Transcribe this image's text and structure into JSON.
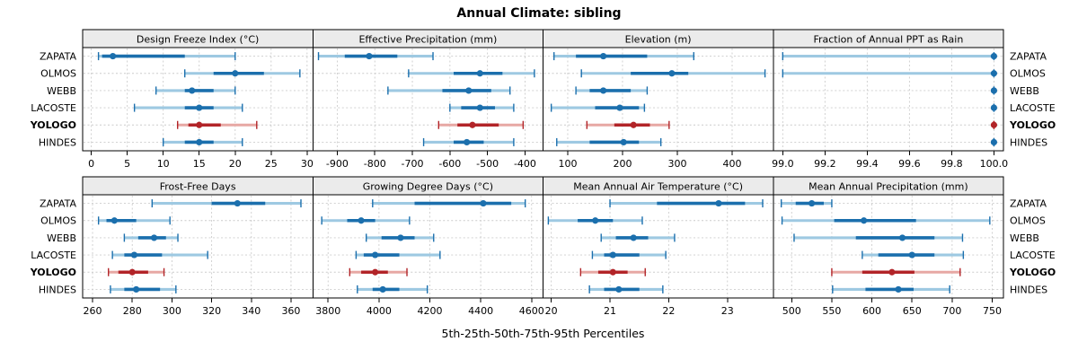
{
  "title": "Annual Climate: sibling",
  "caption": "5th-25th-50th-75th-95th Percentiles",
  "colors": {
    "series_dark": "#1b6fad",
    "series_light": "#9ec9e2",
    "highlight_dark": "#b22428",
    "highlight_light": "#e7a8a4",
    "strip_bg": "#ebebeb",
    "grid": "#cccccc",
    "border": "#000000",
    "text": "#000000"
  },
  "sites": [
    {
      "label": "ZAPATA",
      "highlight": false
    },
    {
      "label": "OLMOS",
      "highlight": false
    },
    {
      "label": "WEBB",
      "highlight": false
    },
    {
      "label": "LACOSTE",
      "highlight": false
    },
    {
      "label": "YOLOGO",
      "highlight": true
    },
    {
      "label": "HINDES",
      "highlight": false
    }
  ],
  "chart_data": {
    "type": "dotplot-percentiles",
    "percentile_levels": [
      5,
      25,
      50,
      75,
      95
    ],
    "grid": "2 rows x 4 cols, shared site axis, dashed gridlines on",
    "panels": [
      {
        "row": 0,
        "col": 0,
        "title": "Design Freeze Index (°C)",
        "xlim": [
          -1.2,
          30.8
        ],
        "ticks": [
          0,
          5,
          10,
          15,
          20,
          25,
          30
        ],
        "tick_labels": [
          "0",
          "5",
          "10",
          "15",
          "20",
          "25",
          "30"
        ],
        "values": [
          [
            1,
            1.5,
            3,
            13,
            20
          ],
          [
            13,
            17,
            20,
            24,
            29
          ],
          [
            9,
            13,
            14,
            17,
            20
          ],
          [
            6,
            13,
            15,
            17,
            21
          ],
          [
            12,
            13.5,
            15,
            18,
            23
          ],
          [
            10,
            13,
            15,
            17,
            21
          ]
        ]
      },
      {
        "row": 0,
        "col": 1,
        "title": "Effective Precipitation (mm)",
        "xlim": [
          -965,
          -352
        ],
        "ticks": [
          -900,
          -800,
          -700,
          -600,
          -500,
          -400
        ],
        "tick_labels": [
          "-900",
          "-800",
          "-700",
          "-600",
          "-500",
          "-400"
        ],
        "values": [
          [
            -950,
            -880,
            -815,
            -740,
            -645
          ],
          [
            -710,
            -590,
            -520,
            -460,
            -375
          ],
          [
            -765,
            -620,
            -550,
            -490,
            -440
          ],
          [
            -600,
            -570,
            -520,
            -480,
            -430
          ],
          [
            -630,
            -580,
            -540,
            -470,
            -405
          ],
          [
            -670,
            -590,
            -555,
            -510,
            -430
          ]
        ]
      },
      {
        "row": 0,
        "col": 2,
        "title": "Elevation (m)",
        "xlim": [
          55,
          475
        ],
        "ticks": [
          100,
          200,
          300,
          400
        ],
        "tick_labels": [
          "100",
          "200",
          "300",
          "400"
        ],
        "values": [
          [
            75,
            115,
            165,
            245,
            330
          ],
          [
            125,
            215,
            290,
            320,
            460
          ],
          [
            115,
            140,
            165,
            215,
            245
          ],
          [
            70,
            150,
            195,
            230,
            240
          ],
          [
            135,
            185,
            220,
            250,
            285
          ],
          [
            80,
            140,
            202,
            230,
            270
          ]
        ]
      },
      {
        "row": 0,
        "col": 3,
        "title": "Fraction of Annual PPT as Rain",
        "xlim": [
          98.955,
          100.045
        ],
        "ticks": [
          99.0,
          99.2,
          99.4,
          99.6,
          99.8,
          100.0
        ],
        "tick_labels": [
          "99.0",
          "99.2",
          "99.4",
          "99.6",
          "99.8",
          "100.0"
        ],
        "values": [
          [
            99,
            100,
            100,
            100,
            100
          ],
          [
            99,
            100,
            100,
            100,
            100
          ],
          [
            100,
            100,
            100,
            100,
            100
          ],
          [
            100,
            100,
            100,
            100,
            100
          ],
          [
            100,
            100,
            100,
            100,
            100
          ],
          [
            100,
            100,
            100,
            100,
            100
          ]
        ]
      },
      {
        "row": 1,
        "col": 0,
        "title": "Frost-Free Days",
        "xlim": [
          255,
          371
        ],
        "ticks": [
          260,
          280,
          300,
          320,
          340,
          360
        ],
        "tick_labels": [
          "260",
          "280",
          "300",
          "320",
          "340",
          "360"
        ],
        "values": [
          [
            290,
            320,
            333,
            347,
            365
          ],
          [
            263,
            267,
            271,
            282,
            299
          ],
          [
            276,
            283,
            291,
            297,
            303
          ],
          [
            270,
            276,
            281,
            295,
            318
          ],
          [
            268,
            273,
            280,
            288,
            296
          ],
          [
            269,
            276,
            282,
            294,
            302
          ]
        ]
      },
      {
        "row": 1,
        "col": 1,
        "title": "Growing Degree Days (°C)",
        "xlim": [
          3740,
          4645
        ],
        "ticks": [
          3800,
          4000,
          4200,
          4400,
          4600
        ],
        "tick_labels": [
          "3800",
          "4000",
          "4200",
          "4400",
          "4600"
        ],
        "values": [
          [
            3975,
            4140,
            4410,
            4520,
            4575
          ],
          [
            3775,
            3875,
            3930,
            3985,
            4120
          ],
          [
            3950,
            4010,
            4085,
            4140,
            4215
          ],
          [
            3910,
            3940,
            3985,
            4080,
            4240
          ],
          [
            3885,
            3930,
            3985,
            4035,
            4110
          ],
          [
            3915,
            3975,
            4015,
            4080,
            4190
          ]
        ]
      },
      {
        "row": 1,
        "col": 2,
        "title": "Mean Annual Air Temperature (°C)",
        "xlim": [
          19.86,
          23.78
        ],
        "ticks": [
          20,
          21,
          22,
          23
        ],
        "tick_labels": [
          "20",
          "21",
          "22",
          "23"
        ],
        "values": [
          [
            21.0,
            21.8,
            22.85,
            23.3,
            23.6
          ],
          [
            19.95,
            20.45,
            20.75,
            21.05,
            21.55
          ],
          [
            20.85,
            21.1,
            21.4,
            21.65,
            22.1
          ],
          [
            20.7,
            20.9,
            21.05,
            21.5,
            21.95
          ],
          [
            20.5,
            20.8,
            21.05,
            21.3,
            21.6
          ],
          [
            20.65,
            20.9,
            21.15,
            21.5,
            21.9
          ]
        ]
      },
      {
        "row": 1,
        "col": 3,
        "title": "Mean Annual Precipitation (mm)",
        "xlim": [
          477,
          764
        ],
        "ticks": [
          500,
          550,
          600,
          650,
          700,
          750
        ],
        "tick_labels": [
          "500",
          "550",
          "600",
          "650",
          "700",
          "750"
        ],
        "values": [
          [
            487,
            505,
            525,
            540,
            550
          ],
          [
            488,
            553,
            590,
            655,
            747
          ],
          [
            503,
            580,
            638,
            678,
            713
          ],
          [
            588,
            608,
            650,
            678,
            714
          ],
          [
            550,
            588,
            625,
            653,
            710
          ],
          [
            551,
            592,
            633,
            652,
            697
          ]
        ]
      }
    ]
  }
}
